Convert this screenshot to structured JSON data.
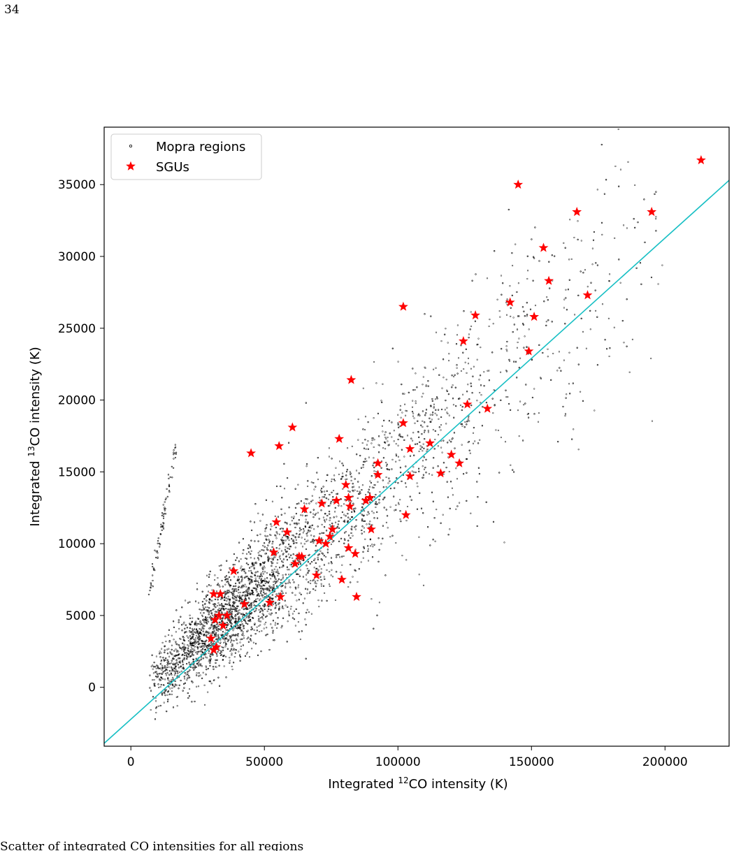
{
  "page": {
    "number": "34",
    "caption_fragment": "Scatter of integrated CO intensities for all regions"
  },
  "colors": {
    "mopra": "#000000",
    "sgu": "#ff0000",
    "fit_line": "#17bfc4"
  },
  "chart_data": {
    "type": "scatter",
    "xlabel_prefix": "Integrated ",
    "xlabel_sup": "12",
    "xlabel_suffix": "CO intensity (K)",
    "ylabel_prefix": "Integrated ",
    "ylabel_sup": "13",
    "ylabel_suffix": "CO intensity (K)",
    "xlim": [
      -10000,
      224000
    ],
    "ylim": [
      -4100,
      39000
    ],
    "xticks": [
      0,
      50000,
      100000,
      150000,
      200000
    ],
    "yticks": [
      0,
      5000,
      10000,
      15000,
      20000,
      25000,
      30000,
      35000
    ],
    "grid": false,
    "legend": {
      "placement": "top-left",
      "entries": [
        {
          "label": "Mopra regions",
          "marker": "dot"
        },
        {
          "label": "SGUs",
          "marker": "star"
        }
      ]
    },
    "fit_line": {
      "x": [
        -10000,
        224000
      ],
      "y": [
        -3900,
        35300
      ]
    },
    "mopra_cloud": {
      "description_count": 5000,
      "main_trend": {
        "x_range": [
          7000,
          200000
        ],
        "slope": 0.1649,
        "intercept": -2250
      },
      "spur": {
        "x_range": [
          7000,
          17000
        ],
        "y_range": [
          6600,
          16900
        ]
      }
    },
    "series": [
      {
        "name": "SGUs",
        "points": [
          [
            30000,
            3400
          ],
          [
            31000,
            2600
          ],
          [
            32000,
            2800
          ],
          [
            31500,
            4700
          ],
          [
            33000,
            5000
          ],
          [
            34500,
            4300
          ],
          [
            36000,
            5000
          ],
          [
            31000,
            6500
          ],
          [
            33500,
            6500
          ],
          [
            38500,
            8100
          ],
          [
            42500,
            5800
          ],
          [
            45000,
            16300
          ],
          [
            52000,
            5900
          ],
          [
            53500,
            9400
          ],
          [
            54500,
            11500
          ],
          [
            55500,
            16800
          ],
          [
            56000,
            6300
          ],
          [
            58500,
            10800
          ],
          [
            60500,
            18100
          ],
          [
            61500,
            8600
          ],
          [
            63000,
            9100
          ],
          [
            64000,
            9100
          ],
          [
            65000,
            12400
          ],
          [
            69500,
            7800
          ],
          [
            70500,
            10200
          ],
          [
            71500,
            12800
          ],
          [
            73000,
            10000
          ],
          [
            74500,
            10500
          ],
          [
            75500,
            11000
          ],
          [
            77000,
            13000
          ],
          [
            78000,
            17300
          ],
          [
            79000,
            7500
          ],
          [
            80500,
            14100
          ],
          [
            81500,
            13200
          ],
          [
            82000,
            12600
          ],
          [
            81500,
            9700
          ],
          [
            82500,
            21400
          ],
          [
            84000,
            9300
          ],
          [
            84500,
            6300
          ],
          [
            88000,
            13000
          ],
          [
            89500,
            13200
          ],
          [
            90000,
            11000
          ],
          [
            92500,
            15600
          ],
          [
            92500,
            14800
          ],
          [
            102000,
            26500
          ],
          [
            102000,
            18400
          ],
          [
            103000,
            12000
          ],
          [
            104500,
            16600
          ],
          [
            104500,
            14700
          ],
          [
            112000,
            17000
          ],
          [
            116000,
            14900
          ],
          [
            120000,
            16200
          ],
          [
            123000,
            15600
          ],
          [
            124500,
            24100
          ],
          [
            126000,
            19700
          ],
          [
            129000,
            25900
          ],
          [
            133500,
            19400
          ],
          [
            142000,
            26800
          ],
          [
            145000,
            35000
          ],
          [
            149000,
            23400
          ],
          [
            151000,
            25800
          ],
          [
            154500,
            30600
          ],
          [
            156500,
            28300
          ],
          [
            167000,
            33100
          ],
          [
            171000,
            27300
          ],
          [
            195000,
            33100
          ],
          [
            213500,
            36700
          ]
        ]
      }
    ]
  }
}
